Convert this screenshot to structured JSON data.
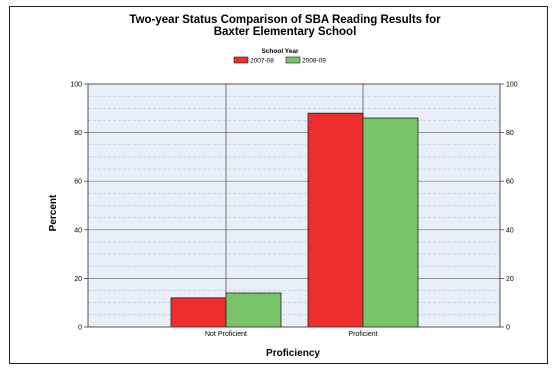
{
  "chart_data": {
    "type": "bar",
    "title_line1": "Two-year Status Comparison of SBA Reading Results for",
    "title_line2": "Baxter Elementary School",
    "legend_title": "School Year",
    "legend_placement": "top-center",
    "categories": [
      "Not Proficient",
      "Proficient"
    ],
    "series": [
      {
        "name": "2007-08",
        "color": "#ee2d2f",
        "values": [
          12,
          88
        ]
      },
      {
        "name": "2008-09",
        "color": "#79c46b",
        "values": [
          14,
          86
        ]
      }
    ],
    "xlabel": "Proficiency",
    "ylabel": "Percent",
    "ylim": [
      0,
      100
    ],
    "yticks": [
      0,
      20,
      40,
      60,
      80,
      100
    ],
    "grid": true,
    "plot_background": "#e9eff9"
  }
}
